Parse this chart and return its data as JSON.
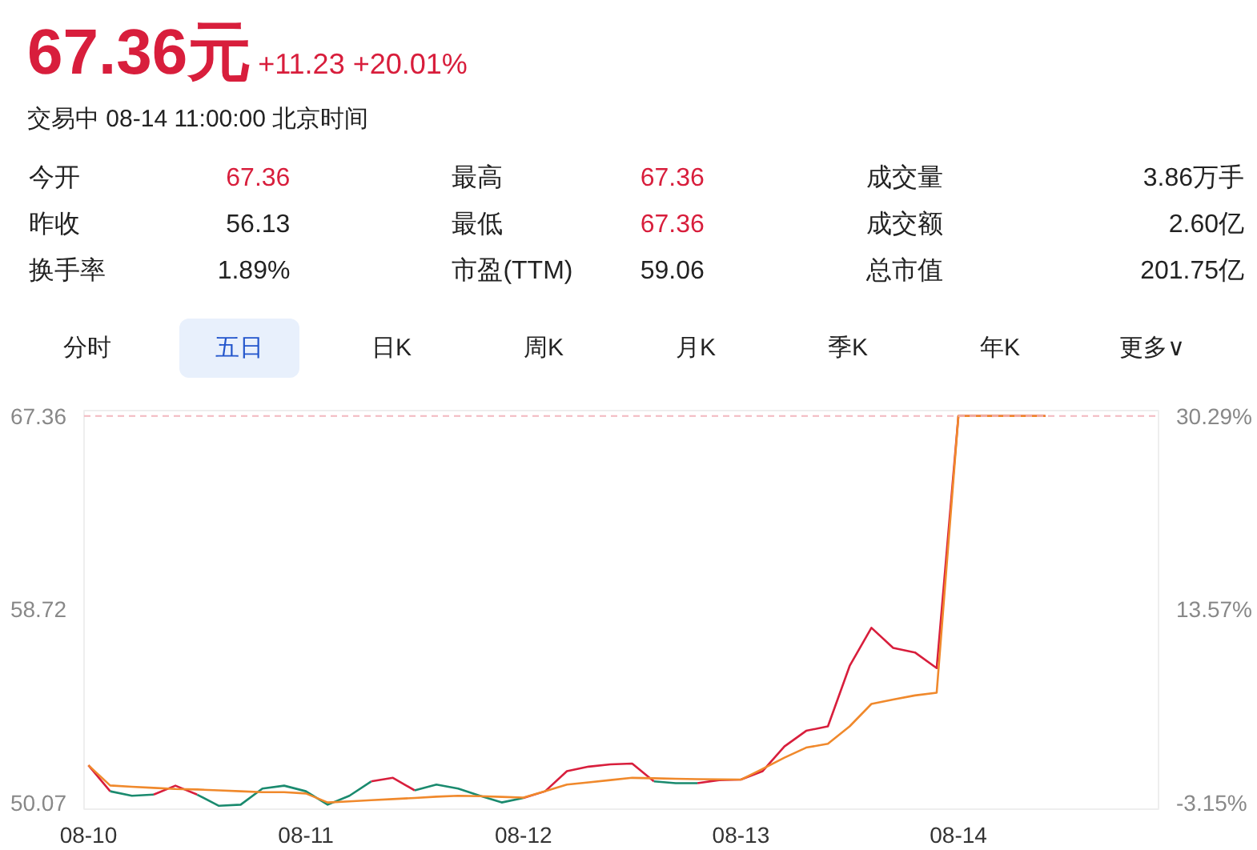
{
  "chart_data": {
    "type": "line",
    "title": "67.36元",
    "subtitle": "+11.23 +20.01%",
    "annotations": [
      "交易中 08-14 11:00:00 北京时间",
      "今开",
      "67.36",
      "最高",
      "67.36",
      "成交量",
      "3.86万手",
      "昨收",
      "56.13",
      "最低",
      "67.36",
      "成交额",
      "2.60亿",
      "换手率",
      "1.89%",
      "市盈(TTM)",
      "59.06",
      "总市值",
      "201.75亿",
      "分时",
      "五日",
      "日K",
      "周K",
      "月K",
      "季K",
      "年K",
      "更多∨"
    ],
    "categories": [
      "08-10",
      null,
      null,
      null,
      null,
      null,
      null,
      null,
      null,
      null,
      "08-11",
      null,
      null,
      null,
      null,
      null,
      null,
      null,
      null,
      null,
      "08-12",
      null,
      null,
      null,
      null,
      null,
      null,
      null,
      null,
      null,
      "08-13",
      null,
      null,
      null,
      null,
      null,
      null,
      null,
      null,
      null,
      "08-14",
      null,
      null,
      null,
      null,
      null,
      null,
      null,
      null,
      null
    ],
    "series": [
      {
        "color": "#d81e3c",
        "values": [
          51.76,
          50.6,
          null,
          50.45,
          50.85,
          50.45,
          null,
          null,
          null,
          null,
          null,
          null,
          null,
          51.04,
          51.2,
          50.64,
          null,
          null,
          null,
          null,
          50.3,
          50.6,
          51.5,
          51.7,
          51.8,
          51.84,
          51.04,
          null,
          50.96,
          51.1,
          51.12,
          51.5,
          52.6,
          53.3,
          53.5,
          56.2,
          57.9,
          57.0,
          56.8,
          56.1,
          67.36,
          67.36,
          67.36,
          67.36,
          67.36,
          null,
          null,
          null,
          null,
          null
        ]
      },
      {
        "color": "#1a8a6e",
        "values": [
          null,
          50.6,
          50.4,
          50.45,
          null,
          50.45,
          49.95,
          50.0,
          50.72,
          50.85,
          50.6,
          50.0,
          50.4,
          51.04,
          null,
          50.64,
          50.9,
          50.72,
          50.4,
          50.1,
          50.3,
          null,
          null,
          null,
          null,
          null,
          51.04,
          50.96,
          50.96,
          null,
          null,
          null,
          null,
          null,
          null,
          null,
          null,
          null,
          null,
          null,
          null,
          null,
          null,
          null,
          null,
          null,
          null,
          null,
          null,
          null
        ]
      },
      {
        "color": "#f0892c",
        "values": [
          51.76,
          50.86,
          50.8,
          50.75,
          50.7,
          50.68,
          50.64,
          50.6,
          50.56,
          50.56,
          50.5,
          50.1,
          50.15,
          50.2,
          50.25,
          50.3,
          50.36,
          50.4,
          50.38,
          50.35,
          50.32,
          50.6,
          50.9,
          51.0,
          51.1,
          51.2,
          51.18,
          51.16,
          51.14,
          51.13,
          51.12,
          51.6,
          52.1,
          52.55,
          52.72,
          53.5,
          54.5,
          54.7,
          54.88,
          55.0,
          67.36,
          67.36,
          67.36,
          67.36,
          67.36,
          null,
          null,
          null,
          null,
          null
        ]
      }
    ],
    "ylim": [
      49.8,
      67.6
    ],
    "yticks": [
      50.07,
      58.72,
      67.36
    ],
    "y2lim": [
      -3.68,
      30.75
    ],
    "y2ticks": [
      {
        "value": -3.15,
        "label": "-3.15%"
      },
      {
        "value": 13.57,
        "label": "13.57%"
      },
      {
        "value": 30.29,
        "label": "30.29%"
      }
    ],
    "ref_lines": [
      {
        "axis": "y",
        "value": 67.36,
        "color": "#f2b8c0",
        "line_style": "dashed"
      }
    ],
    "grid": false
  }
}
